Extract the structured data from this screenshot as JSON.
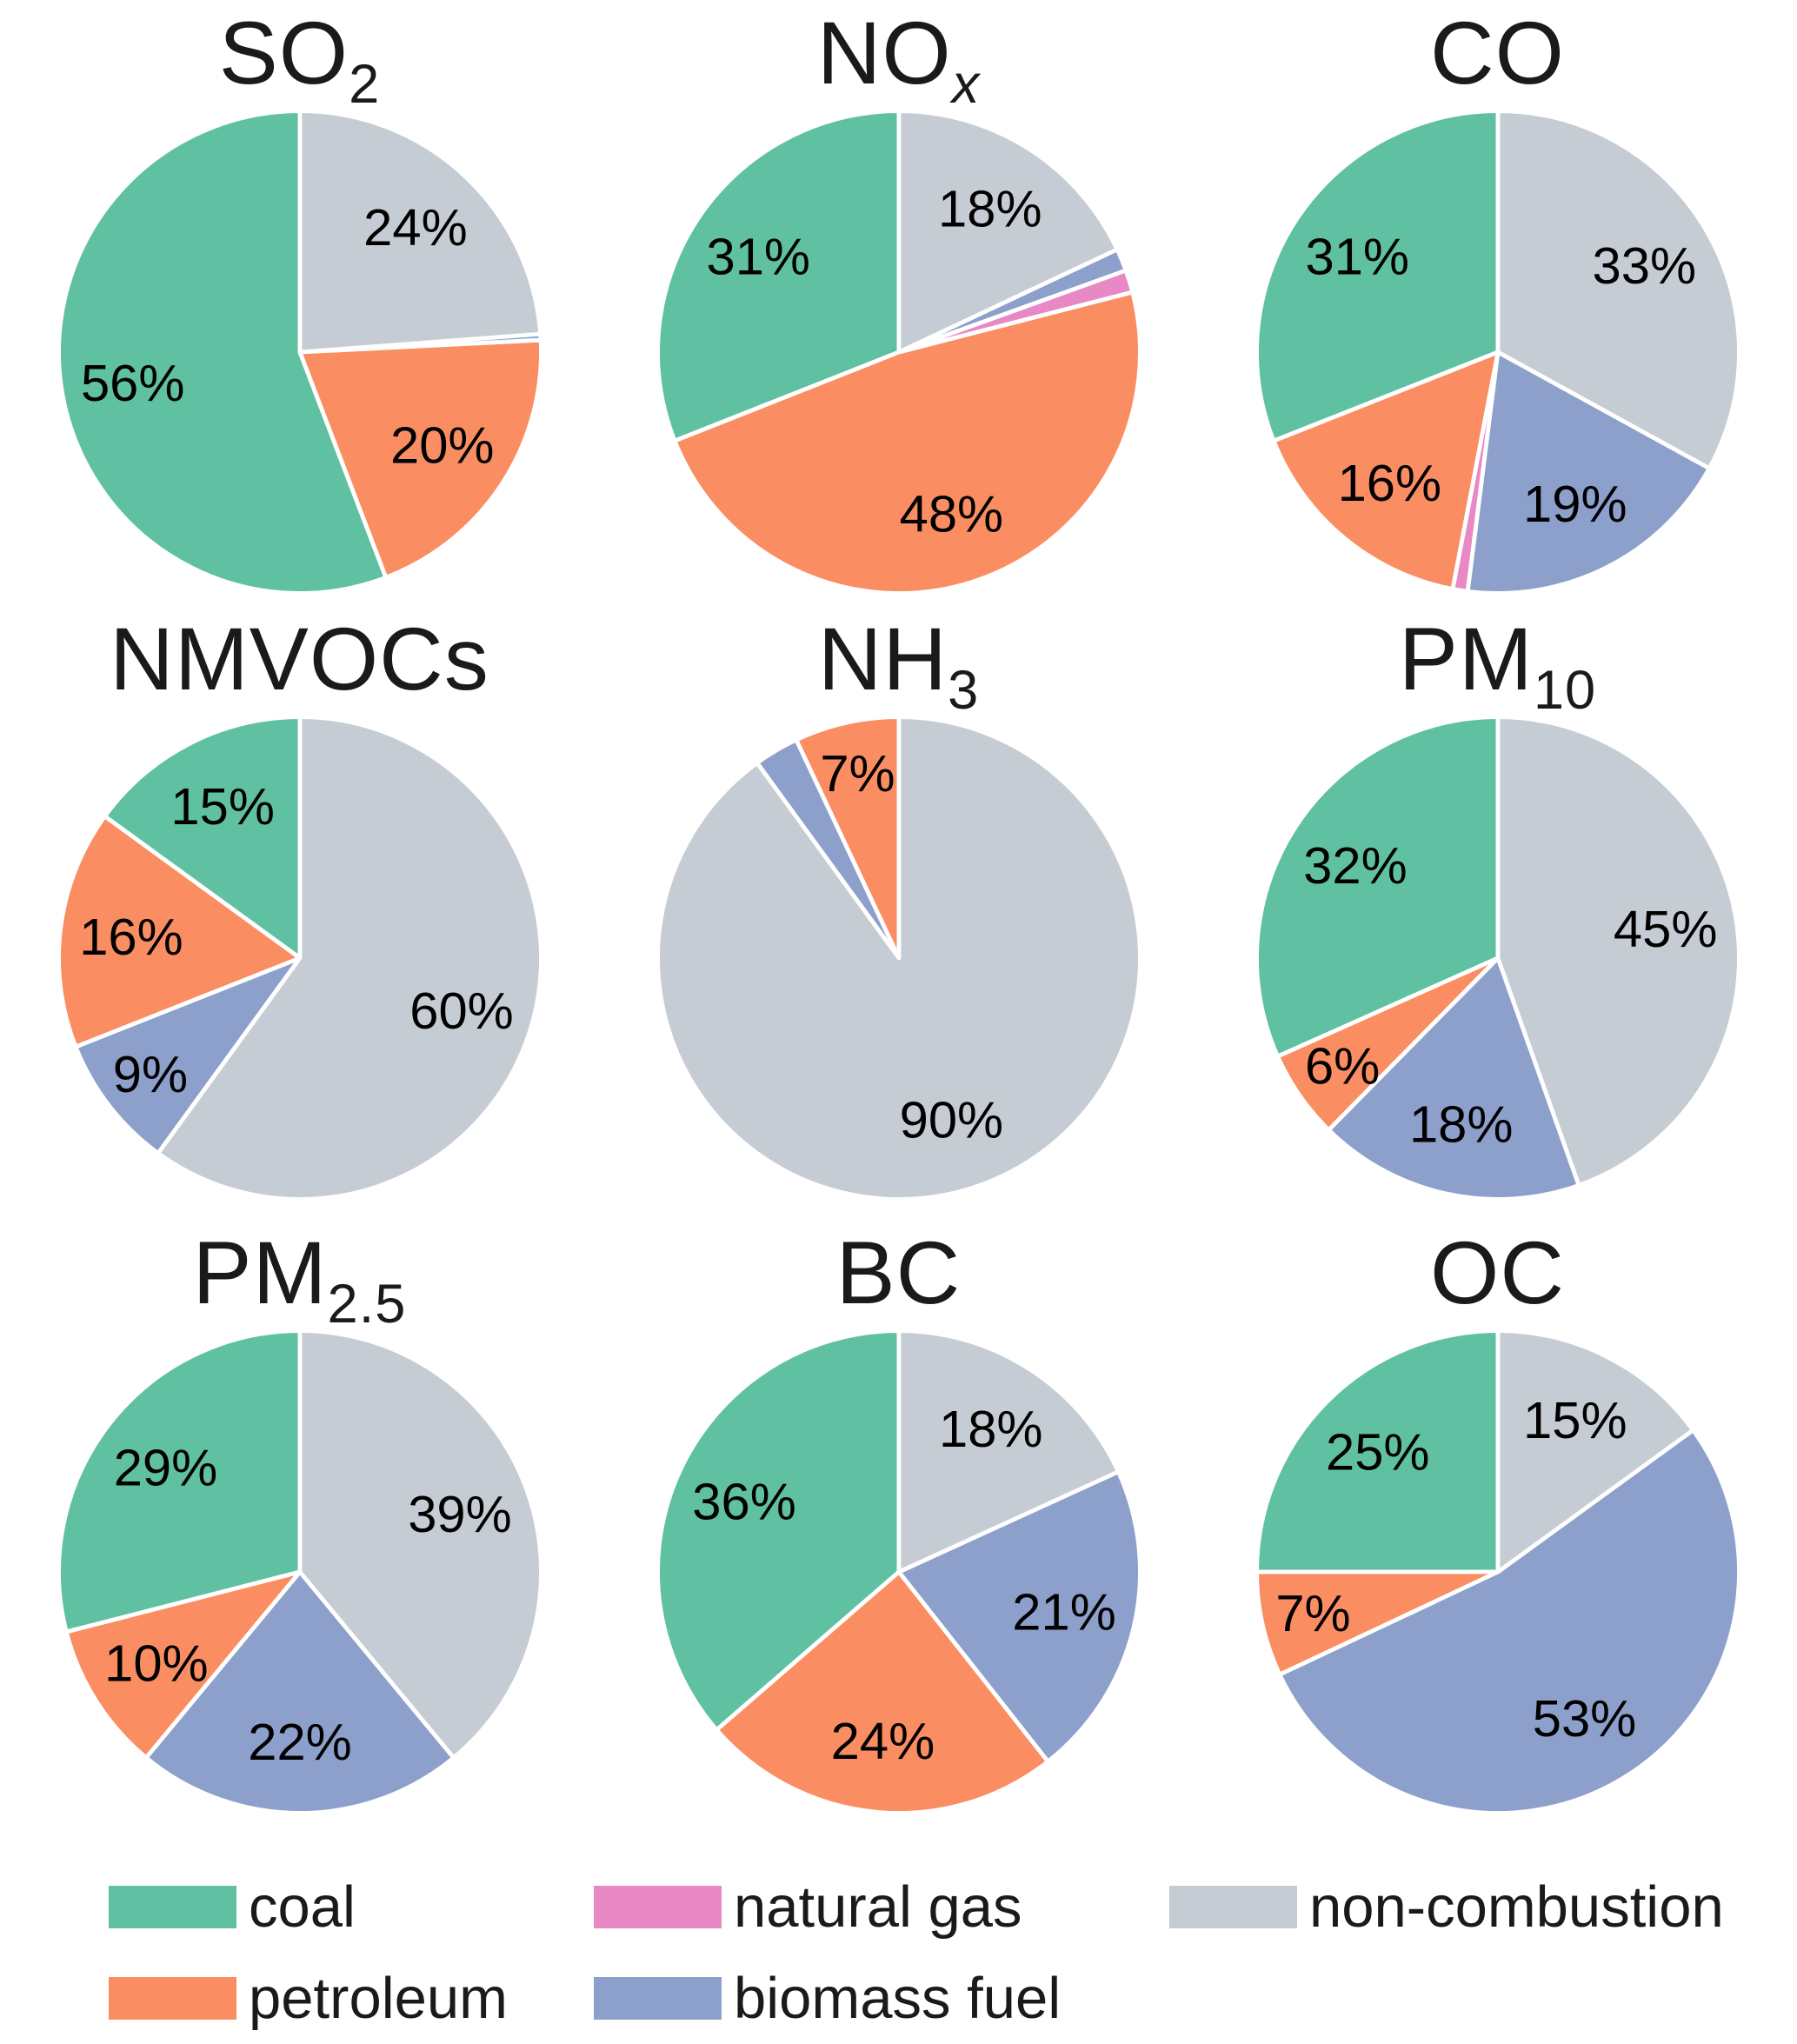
{
  "figure": {
    "description": "Nine pie charts of emission source contributions by pollutant",
    "unit": "%"
  },
  "palette": {
    "coal": "#60c1a2",
    "petroleum": "#fa8e62",
    "natural_gas": "#e888c4",
    "biomass_fuel": "#8da0cb",
    "non_combustion": "#c6ccd3"
  },
  "legend": {
    "items": [
      {
        "label": "coal",
        "color_key": "coal"
      },
      {
        "label": "petroleum",
        "color_key": "petroleum"
      },
      {
        "label": "natural gas",
        "color_key": "natural_gas"
      },
      {
        "label": "biomass fuel",
        "color_key": "biomass_fuel"
      },
      {
        "label": "non-combustion",
        "color_key": "non_combustion"
      }
    ]
  },
  "chart_data": [
    {
      "type": "pie",
      "title": {
        "main": "SO",
        "sub": "2",
        "sub_italic": false
      },
      "start": "top",
      "direction": "counterclockwise",
      "slices": [
        {
          "category": "coal",
          "color_key": "coal",
          "value": 55.8,
          "label": "56%"
        },
        {
          "category": "petroleum",
          "color_key": "petroleum",
          "value": 20,
          "label": "20%"
        },
        {
          "category": "natural gas",
          "color_key": "natural_gas",
          "value": 0,
          "label": ""
        },
        {
          "category": "biomass fuel",
          "color_key": "biomass_fuel",
          "value": 0.4,
          "label": ""
        },
        {
          "category": "non-combustion",
          "color_key": "non_combustion",
          "value": 23.8,
          "label": "24%"
        }
      ]
    },
    {
      "type": "pie",
      "title": {
        "main": "NO",
        "sub": "x",
        "sub_italic": true
      },
      "start": "top",
      "direction": "counterclockwise",
      "slices": [
        {
          "category": "coal",
          "color_key": "coal",
          "value": 31,
          "label": "31%"
        },
        {
          "category": "petroleum",
          "color_key": "petroleum",
          "value": 48,
          "label": "48%"
        },
        {
          "category": "natural gas",
          "color_key": "natural_gas",
          "value": 1.5,
          "label": ""
        },
        {
          "category": "biomass fuel",
          "color_key": "biomass_fuel",
          "value": 1.5,
          "label": ""
        },
        {
          "category": "non-combustion",
          "color_key": "non_combustion",
          "value": 18,
          "label": "18%"
        }
      ]
    },
    {
      "type": "pie",
      "title": {
        "main": "CO",
        "sub": "",
        "sub_italic": false
      },
      "start": "top",
      "direction": "counterclockwise",
      "slices": [
        {
          "category": "coal",
          "color_key": "coal",
          "value": 31,
          "label": "31%"
        },
        {
          "category": "petroleum",
          "color_key": "petroleum",
          "value": 16,
          "label": "16%"
        },
        {
          "category": "natural gas",
          "color_key": "natural_gas",
          "value": 1,
          "label": ""
        },
        {
          "category": "biomass fuel",
          "color_key": "biomass_fuel",
          "value": 19,
          "label": "19%"
        },
        {
          "category": "non-combustion",
          "color_key": "non_combustion",
          "value": 33,
          "label": "33%"
        }
      ]
    },
    {
      "type": "pie",
      "title": {
        "main": "NMVOCs",
        "sub": "",
        "sub_italic": false
      },
      "start": "top",
      "direction": "counterclockwise",
      "slices": [
        {
          "category": "coal",
          "color_key": "coal",
          "value": 15,
          "label": "15%"
        },
        {
          "category": "petroleum",
          "color_key": "petroleum",
          "value": 16,
          "label": "16%"
        },
        {
          "category": "natural gas",
          "color_key": "natural_gas",
          "value": 0,
          "label": ""
        },
        {
          "category": "biomass fuel",
          "color_key": "biomass_fuel",
          "value": 9,
          "label": "9%"
        },
        {
          "category": "non-combustion",
          "color_key": "non_combustion",
          "value": 60,
          "label": "60%"
        }
      ]
    },
    {
      "type": "pie",
      "title": {
        "main": "NH",
        "sub": "3",
        "sub_italic": false
      },
      "start": "top",
      "direction": "counterclockwise",
      "slices": [
        {
          "category": "coal",
          "color_key": "coal",
          "value": 0,
          "label": ""
        },
        {
          "category": "petroleum",
          "color_key": "petroleum",
          "value": 7,
          "label": "7%"
        },
        {
          "category": "natural gas",
          "color_key": "natural_gas",
          "value": 0,
          "label": ""
        },
        {
          "category": "biomass fuel",
          "color_key": "biomass_fuel",
          "value": 3,
          "label": ""
        },
        {
          "category": "non-combustion",
          "color_key": "non_combustion",
          "value": 90,
          "label": "90%"
        }
      ]
    },
    {
      "type": "pie",
      "title": {
        "main": "PM",
        "sub": "10",
        "sub_italic": false
      },
      "start": "top",
      "direction": "counterclockwise",
      "slices": [
        {
          "category": "coal",
          "color_key": "coal",
          "value": 32,
          "label": "32%"
        },
        {
          "category": "petroleum",
          "color_key": "petroleum",
          "value": 6,
          "label": "6%"
        },
        {
          "category": "natural gas",
          "color_key": "natural_gas",
          "value": 0,
          "label": ""
        },
        {
          "category": "biomass fuel",
          "color_key": "biomass_fuel",
          "value": 18,
          "label": "18%"
        },
        {
          "category": "non-combustion",
          "color_key": "non_combustion",
          "value": 45,
          "label": "45%"
        }
      ]
    },
    {
      "type": "pie",
      "title": {
        "main": "PM",
        "sub": "2.5",
        "sub_italic": false
      },
      "start": "top",
      "direction": "counterclockwise",
      "slices": [
        {
          "category": "coal",
          "color_key": "coal",
          "value": 29,
          "label": "29%"
        },
        {
          "category": "petroleum",
          "color_key": "petroleum",
          "value": 10,
          "label": "10%"
        },
        {
          "category": "natural gas",
          "color_key": "natural_gas",
          "value": 0,
          "label": ""
        },
        {
          "category": "biomass fuel",
          "color_key": "biomass_fuel",
          "value": 22,
          "label": "22%"
        },
        {
          "category": "non-combustion",
          "color_key": "non_combustion",
          "value": 39,
          "label": "39%"
        }
      ]
    },
    {
      "type": "pie",
      "title": {
        "main": "BC",
        "sub": "",
        "sub_italic": false
      },
      "start": "top",
      "direction": "counterclockwise",
      "slices": [
        {
          "category": "coal",
          "color_key": "coal",
          "value": 36,
          "label": "36%"
        },
        {
          "category": "petroleum",
          "color_key": "petroleum",
          "value": 24,
          "label": "24%"
        },
        {
          "category": "natural gas",
          "color_key": "natural_gas",
          "value": 0,
          "label": ""
        },
        {
          "category": "biomass fuel",
          "color_key": "biomass_fuel",
          "value": 21,
          "label": "21%"
        },
        {
          "category": "non-combustion",
          "color_key": "non_combustion",
          "value": 18,
          "label": "18%"
        }
      ]
    },
    {
      "type": "pie",
      "title": {
        "main": "OC",
        "sub": "",
        "sub_italic": false
      },
      "start": "top",
      "direction": "counterclockwise",
      "slices": [
        {
          "category": "coal",
          "color_key": "coal",
          "value": 25,
          "label": "25%"
        },
        {
          "category": "petroleum",
          "color_key": "petroleum",
          "value": 7,
          "label": "7%"
        },
        {
          "category": "natural gas",
          "color_key": "natural_gas",
          "value": 0,
          "label": ""
        },
        {
          "category": "biomass fuel",
          "color_key": "biomass_fuel",
          "value": 53,
          "label": "53%"
        },
        {
          "category": "non-combustion",
          "color_key": "non_combustion",
          "value": 15,
          "label": "15%"
        }
      ]
    }
  ]
}
